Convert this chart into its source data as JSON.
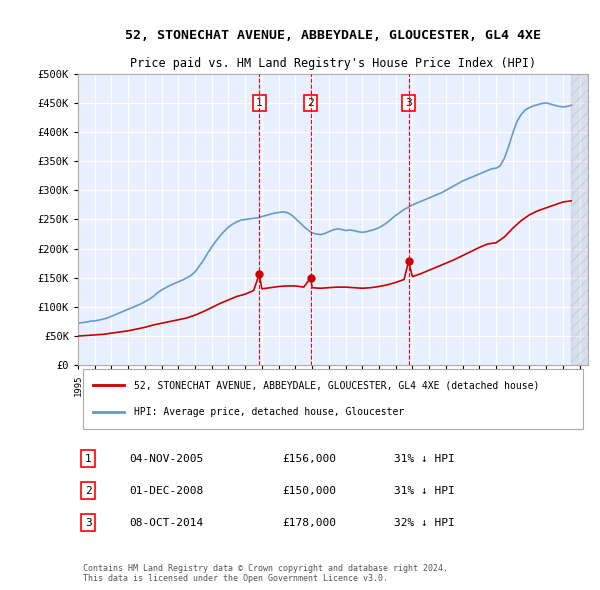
{
  "title": "52, STONECHAT AVENUE, ABBEYDALE, GLOUCESTER, GL4 4XE",
  "subtitle": "Price paid vs. HM Land Registry's House Price Index (HPI)",
  "ylabel": "",
  "ylim": [
    0,
    500000
  ],
  "yticks": [
    0,
    50000,
    100000,
    150000,
    200000,
    250000,
    300000,
    350000,
    400000,
    450000,
    500000
  ],
  "ytick_labels": [
    "£0",
    "£50K",
    "£100K",
    "£150K",
    "£200K",
    "£250K",
    "£300K",
    "£350K",
    "£400K",
    "£450K",
    "£500K"
  ],
  "background_color": "#ffffff",
  "plot_bg_color": "#e8f0ff",
  "grid_color": "#ffffff",
  "hpi_color": "#6699cc",
  "price_color": "#cc0000",
  "transactions": [
    {
      "date": "2005-11-04",
      "price": 156000,
      "label": "1"
    },
    {
      "date": "2008-12-01",
      "price": 150000,
      "label": "2"
    },
    {
      "date": "2014-10-08",
      "price": 178000,
      "label": "3"
    }
  ],
  "transaction_dates_float": [
    2005.84,
    2008.92,
    2014.77
  ],
  "legend_line1": "52, STONECHAT AVENUE, ABBEYDALE, GLOUCESTER, GL4 4XE (detached house)",
  "legend_line2": "HPI: Average price, detached house, Gloucester",
  "table_rows": [
    {
      "num": "1",
      "date": "04-NOV-2005",
      "price": "£156,000",
      "hpi": "31% ↓ HPI"
    },
    {
      "num": "2",
      "date": "01-DEC-2008",
      "price": "£150,000",
      "hpi": "31% ↓ HPI"
    },
    {
      "num": "3",
      "date": "08-OCT-2014",
      "price": "£178,000",
      "hpi": "32% ↓ HPI"
    }
  ],
  "footer": "Contains HM Land Registry data © Crown copyright and database right 2024.\nThis data is licensed under the Open Government Licence v3.0.",
  "xmin": 1995.0,
  "xmax": 2025.5,
  "hpi_data_x": [
    1995.0,
    1995.25,
    1995.5,
    1995.75,
    1996.0,
    1996.25,
    1996.5,
    1996.75,
    1997.0,
    1997.25,
    1997.5,
    1997.75,
    1998.0,
    1998.25,
    1998.5,
    1998.75,
    1999.0,
    1999.25,
    1999.5,
    1999.75,
    2000.0,
    2000.25,
    2000.5,
    2000.75,
    2001.0,
    2001.25,
    2001.5,
    2001.75,
    2002.0,
    2002.25,
    2002.5,
    2002.75,
    2003.0,
    2003.25,
    2003.5,
    2003.75,
    2004.0,
    2004.25,
    2004.5,
    2004.75,
    2005.0,
    2005.25,
    2005.5,
    2005.75,
    2006.0,
    2006.25,
    2006.5,
    2006.75,
    2007.0,
    2007.25,
    2007.5,
    2007.75,
    2008.0,
    2008.25,
    2008.5,
    2008.75,
    2009.0,
    2009.25,
    2009.5,
    2009.75,
    2010.0,
    2010.25,
    2010.5,
    2010.75,
    2011.0,
    2011.25,
    2011.5,
    2011.75,
    2012.0,
    2012.25,
    2012.5,
    2012.75,
    2013.0,
    2013.25,
    2013.5,
    2013.75,
    2014.0,
    2014.25,
    2014.5,
    2014.75,
    2015.0,
    2015.25,
    2015.5,
    2015.75,
    2016.0,
    2016.25,
    2016.5,
    2016.75,
    2017.0,
    2017.25,
    2017.5,
    2017.75,
    2018.0,
    2018.25,
    2018.5,
    2018.75,
    2019.0,
    2019.25,
    2019.5,
    2019.75,
    2020.0,
    2020.25,
    2020.5,
    2020.75,
    2021.0,
    2021.25,
    2021.5,
    2021.75,
    2022.0,
    2022.25,
    2022.5,
    2022.75,
    2023.0,
    2023.25,
    2023.5,
    2023.75,
    2024.0,
    2024.25,
    2024.5
  ],
  "hpi_data_y": [
    72000,
    73000,
    74000,
    75500,
    76000,
    77500,
    79000,
    81000,
    84000,
    87000,
    90000,
    93000,
    96000,
    99000,
    102000,
    105000,
    109000,
    113000,
    118000,
    124000,
    129000,
    133000,
    137000,
    140000,
    143000,
    146000,
    150000,
    154000,
    160000,
    170000,
    180000,
    192000,
    203000,
    213000,
    222000,
    230000,
    237000,
    242000,
    246000,
    249000,
    250000,
    251000,
    252000,
    253000,
    255000,
    257000,
    259000,
    261000,
    262000,
    263000,
    262000,
    258000,
    252000,
    245000,
    238000,
    232000,
    227000,
    225000,
    224000,
    226000,
    229000,
    232000,
    234000,
    233000,
    231000,
    232000,
    231000,
    229000,
    228000,
    229000,
    231000,
    233000,
    236000,
    240000,
    245000,
    251000,
    257000,
    262000,
    267000,
    271000,
    275000,
    278000,
    281000,
    284000,
    287000,
    290000,
    293000,
    296000,
    300000,
    304000,
    308000,
    312000,
    316000,
    319000,
    322000,
    325000,
    328000,
    331000,
    334000,
    337000,
    338000,
    342000,
    355000,
    375000,
    398000,
    418000,
    430000,
    438000,
    442000,
    445000,
    447000,
    449000,
    450000,
    448000,
    446000,
    444000,
    443000,
    444000,
    446000
  ],
  "price_data_x": [
    1995.0,
    1995.5,
    1996.0,
    1996.5,
    1997.0,
    1997.5,
    1998.0,
    1998.5,
    1999.0,
    1999.5,
    2000.0,
    2000.5,
    2001.0,
    2001.5,
    2002.0,
    2002.5,
    2003.0,
    2003.5,
    2004.0,
    2004.5,
    2005.0,
    2005.5,
    2005.84,
    2006.0,
    2006.5,
    2007.0,
    2007.5,
    2008.0,
    2008.5,
    2008.92,
    2009.0,
    2009.5,
    2010.0,
    2010.5,
    2011.0,
    2011.5,
    2012.0,
    2012.5,
    2013.0,
    2013.5,
    2014.0,
    2014.5,
    2014.77,
    2015.0,
    2015.5,
    2016.0,
    2016.5,
    2017.0,
    2017.5,
    2018.0,
    2018.5,
    2019.0,
    2019.5,
    2020.0,
    2020.5,
    2021.0,
    2021.5,
    2022.0,
    2022.5,
    2023.0,
    2023.5,
    2024.0,
    2024.5
  ],
  "price_data_y": [
    50000,
    51000,
    52000,
    53000,
    55000,
    57000,
    59000,
    62000,
    65000,
    69000,
    72000,
    75000,
    78000,
    81000,
    86000,
    92000,
    99000,
    106000,
    112000,
    118000,
    122000,
    128000,
    156000,
    131000,
    133000,
    135000,
    136000,
    136000,
    134000,
    150000,
    133000,
    132000,
    133000,
    134000,
    134000,
    133000,
    132000,
    133000,
    135000,
    138000,
    142000,
    147000,
    178000,
    152000,
    157000,
    163000,
    169000,
    175000,
    181000,
    188000,
    195000,
    202000,
    208000,
    210000,
    220000,
    235000,
    248000,
    258000,
    265000,
    270000,
    275000,
    280000,
    282000
  ]
}
